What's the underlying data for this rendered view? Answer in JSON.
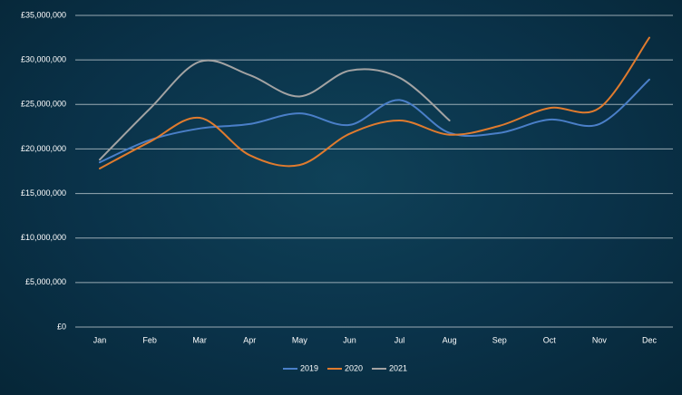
{
  "chart_data": {
    "type": "line",
    "categories": [
      "Jan",
      "Feb",
      "Mar",
      "Apr",
      "May",
      "Jun",
      "Jul",
      "Aug",
      "Sep",
      "Oct",
      "Nov",
      "Dec"
    ],
    "series": [
      {
        "name": "2019",
        "color": "#4a7fc8",
        "values": [
          18500000,
          21000000,
          22300000,
          22800000,
          24000000,
          22700000,
          25500000,
          21800000,
          21800000,
          23300000,
          22800000,
          27800000
        ]
      },
      {
        "name": "2020",
        "color": "#e07b2e",
        "values": [
          17800000,
          20800000,
          23500000,
          19300000,
          18200000,
          21700000,
          23200000,
          21600000,
          22600000,
          24600000,
          24600000,
          32500000
        ]
      },
      {
        "name": "2021",
        "color": "#a3a3a3",
        "values": [
          18800000,
          24500000,
          29800000,
          28300000,
          25900000,
          28800000,
          28000000,
          23200000,
          null,
          null,
          null,
          null
        ]
      }
    ],
    "ylim": [
      0,
      35000000
    ],
    "yticks": [
      {
        "value": 0,
        "label": "£0"
      },
      {
        "value": 5000000,
        "label": "£5,000,000"
      },
      {
        "value": 10000000,
        "label": "£10,000,000"
      },
      {
        "value": 15000000,
        "label": "£15,000,000"
      },
      {
        "value": 20000000,
        "label": "£20,000,000"
      },
      {
        "value": 25000000,
        "label": "£25,000,000"
      },
      {
        "value": 30000000,
        "label": "£30,000,000"
      },
      {
        "value": 35000000,
        "label": "£35,000,000"
      }
    ],
    "grid": true,
    "legend": "bottom",
    "smooth": true
  }
}
